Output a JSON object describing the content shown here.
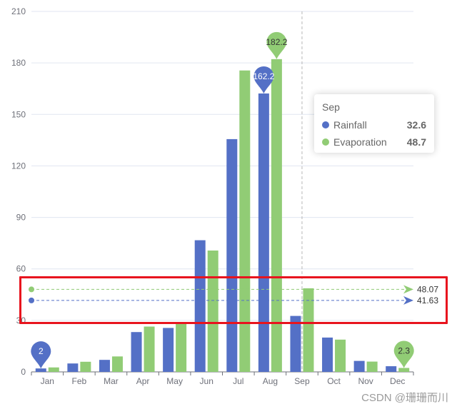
{
  "chart_data": {
    "type": "bar",
    "categories": [
      "Jan",
      "Feb",
      "Mar",
      "Apr",
      "May",
      "Jun",
      "Jul",
      "Aug",
      "Sep",
      "Oct",
      "Nov",
      "Dec"
    ],
    "series": [
      {
        "name": "Rainfall",
        "color": "#5470c6",
        "values": [
          2.0,
          4.9,
          7.0,
          23.2,
          25.6,
          76.7,
          135.6,
          162.2,
          32.6,
          20.0,
          6.4,
          3.3
        ],
        "max_pin": "162.2",
        "min_pin": "2",
        "average": 41.63
      },
      {
        "name": "Evaporation",
        "color": "#91cc75",
        "values": [
          2.6,
          5.9,
          9.0,
          26.4,
          28.7,
          70.7,
          175.6,
          182.2,
          48.7,
          18.8,
          6.0,
          2.3
        ],
        "max_pin": "182.2",
        "min_pin": "2.3",
        "average": 48.07
      }
    ],
    "ylim": [
      0,
      210
    ],
    "yticks": [
      "0",
      "30",
      "60",
      "90",
      "120",
      "150",
      "180",
      "210"
    ],
    "grid": true,
    "legend": "none",
    "hover_category": "Sep"
  },
  "tooltip": {
    "title": "Sep",
    "rows": [
      {
        "name": "Rainfall",
        "value": "32.6",
        "color": "#5470c6"
      },
      {
        "name": "Evaporation",
        "value": "48.7",
        "color": "#91cc75"
      }
    ]
  },
  "average_labels": {
    "rainfall": "41.63",
    "evaporation": "48.07"
  },
  "watermark": "CSDN @珊珊而川"
}
